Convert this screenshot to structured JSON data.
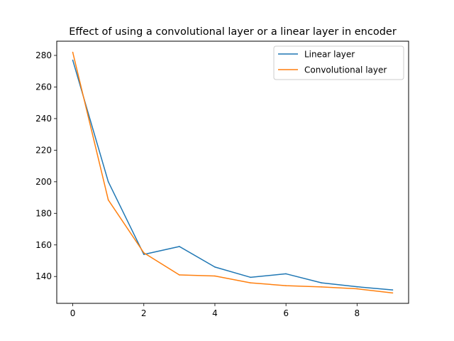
{
  "chart_data": {
    "type": "line",
    "title": "Effect of using a convolutional layer or a linear layer in encoder",
    "xlabel": "",
    "ylabel": "",
    "x": [
      0,
      1,
      2,
      3,
      4,
      5,
      6,
      7,
      8,
      9
    ],
    "xlim": [
      -0.45,
      9.45
    ],
    "ylim": [
      123,
      289
    ],
    "xticks": [
      0,
      2,
      4,
      6,
      8
    ],
    "yticks": [
      140,
      160,
      180,
      200,
      220,
      240,
      260,
      280
    ],
    "grid": false,
    "legend_position": "upper right",
    "series": [
      {
        "name": "Linear layer",
        "color": "#1f77b4",
        "values": [
          277,
          200,
          154,
          159,
          146,
          139.5,
          141.7,
          136,
          133.5,
          131.5
        ]
      },
      {
        "name": "Convolutional layer",
        "color": "#ff7f0e",
        "values": [
          282,
          188.5,
          155,
          141,
          140.3,
          136,
          134.2,
          133.4,
          132.2,
          129.6
        ]
      }
    ]
  }
}
